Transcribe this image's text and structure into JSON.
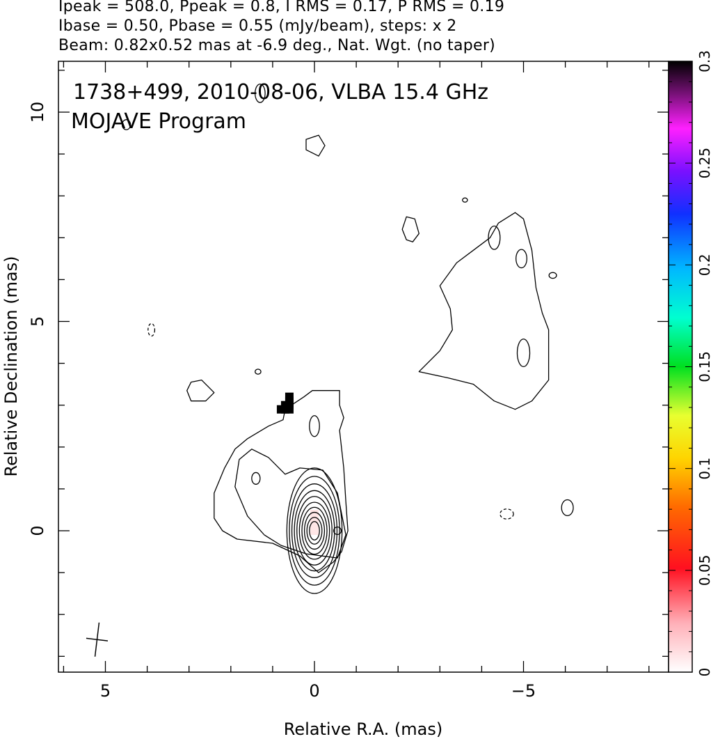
{
  "header": {
    "line1": "Ipeak = 508.0, Ppeak = 0.8, I RMS = 0.17, P RMS = 0.19",
    "line2": "Ibase = 0.50, Pbase = 0.55 (mJy/beam), steps: x 2",
    "line3": "Beam: 0.82x0.52 mas at -6.9 deg., Nat. Wgt. (no taper)"
  },
  "annotations": {
    "source": "1738+499, 2010-08-06, VLBA 15.4 GHz",
    "program": "MOJAVE Program"
  },
  "chart_data": {
    "type": "contour",
    "xlabel": "Relative R.A. (mas)",
    "ylabel": "Relative Declination (mas)",
    "xlim": [
      6.1,
      -8.5
    ],
    "ylim": [
      -3.4,
      11.3
    ],
    "x_ticks": [
      5,
      0,
      -5
    ],
    "y_ticks": [
      0,
      5,
      10
    ],
    "colorbar": {
      "range": [
        0,
        0.3
      ],
      "ticks": [
        "0",
        "0.05",
        "0.1",
        "0.15",
        "0.2",
        "0.25",
        "0.3"
      ]
    },
    "beam": {
      "major_mas": 0.82,
      "minor_mas": 0.52,
      "pa_deg": -6.9,
      "center": [
        5.2,
        -2.6
      ]
    },
    "core_contours": [
      {
        "rx": 0.12,
        "ry": 0.22
      },
      {
        "rx": 0.18,
        "ry": 0.32
      },
      {
        "rx": 0.24,
        "ry": 0.44
      },
      {
        "rx": 0.3,
        "ry": 0.56
      },
      {
        "rx": 0.36,
        "ry": 0.68
      },
      {
        "rx": 0.42,
        "ry": 0.82
      },
      {
        "rx": 0.48,
        "ry": 0.96
      },
      {
        "rx": 0.54,
        "ry": 1.12
      },
      {
        "rx": 0.6,
        "ry": 1.3
      },
      {
        "rx": 0.66,
        "ry": 1.5
      }
    ],
    "outer_contours": [
      {
        "name": "inner-jet-envelope",
        "points": [
          [
            0.7,
            1.35
          ],
          [
            1.1,
            1.75
          ],
          [
            1.5,
            1.95
          ],
          [
            1.8,
            1.7
          ],
          [
            1.9,
            1.05
          ],
          [
            1.6,
            0.35
          ],
          [
            1.2,
            -0.1
          ],
          [
            0.8,
            -0.35
          ],
          [
            0.2,
            -0.55
          ],
          [
            -0.55,
            -0.65
          ],
          [
            -0.75,
            -0.1
          ],
          [
            -0.55,
            0.9
          ],
          [
            -0.2,
            1.45
          ],
          [
            0.35,
            1.5
          ]
        ]
      },
      {
        "name": "outer-jet-envelope",
        "points": [
          [
            -0.6,
            3.35
          ],
          [
            -0.6,
            3.0
          ],
          [
            -0.7,
            2.7
          ],
          [
            -0.6,
            2.4
          ],
          [
            -0.7,
            1.5
          ],
          [
            -0.75,
            0.7
          ],
          [
            -0.8,
            0.0
          ],
          [
            -0.65,
            -0.5
          ],
          [
            -0.45,
            -0.75
          ],
          [
            -0.1,
            -1.0
          ],
          [
            0.35,
            -0.6
          ],
          [
            1.0,
            -0.3
          ],
          [
            1.85,
            -0.2
          ],
          [
            2.2,
            0.0
          ],
          [
            2.4,
            0.3
          ],
          [
            2.4,
            0.9
          ],
          [
            2.15,
            1.5
          ],
          [
            1.9,
            1.95
          ],
          [
            1.6,
            2.2
          ],
          [
            1.1,
            2.5
          ],
          [
            0.75,
            2.65
          ],
          [
            0.7,
            2.9
          ],
          [
            0.25,
            3.2
          ],
          [
            0.05,
            3.35
          ]
        ]
      },
      {
        "name": "halo-west",
        "points": [
          [
            -2.5,
            3.8
          ],
          [
            -3.0,
            4.3
          ],
          [
            -3.3,
            4.8
          ],
          [
            -3.25,
            5.3
          ],
          [
            -3.0,
            5.85
          ],
          [
            -3.4,
            6.4
          ],
          [
            -3.8,
            6.7
          ],
          [
            -4.2,
            7.0
          ],
          [
            -4.4,
            7.35
          ],
          [
            -4.8,
            7.6
          ],
          [
            -5.0,
            7.45
          ],
          [
            -5.2,
            6.7
          ],
          [
            -5.3,
            5.8
          ],
          [
            -5.45,
            5.2
          ],
          [
            -5.6,
            4.8
          ],
          [
            -5.6,
            3.6
          ],
          [
            -5.2,
            3.1
          ],
          [
            -4.8,
            2.9
          ],
          [
            -4.3,
            3.1
          ],
          [
            -3.8,
            3.5
          ],
          [
            -3.2,
            3.65
          ]
        ]
      },
      {
        "name": "island-a",
        "points": [
          [
            2.7,
            3.6
          ],
          [
            2.4,
            3.3
          ],
          [
            2.6,
            3.1
          ],
          [
            2.95,
            3.1
          ],
          [
            3.05,
            3.35
          ],
          [
            2.95,
            3.55
          ]
        ]
      },
      {
        "name": "island-b",
        "points": [
          [
            -2.1,
            7.2
          ],
          [
            -2.2,
            6.95
          ],
          [
            -2.35,
            6.9
          ],
          [
            -2.5,
            7.1
          ],
          [
            -2.4,
            7.45
          ],
          [
            -2.2,
            7.5
          ]
        ]
      },
      {
        "name": "island-c",
        "points": [
          [
            0.2,
            9.1
          ],
          [
            0.2,
            9.35
          ],
          [
            -0.1,
            9.45
          ],
          [
            -0.25,
            9.2
          ],
          [
            -0.1,
            8.95
          ]
        ]
      }
    ],
    "small_islands": [
      {
        "x": 1.4,
        "y": 1.25,
        "rx": 0.1,
        "ry": 0.14
      },
      {
        "x": 0.0,
        "y": 2.5,
        "rx": 0.12,
        "ry": 0.25
      },
      {
        "x": 1.35,
        "y": 3.8,
        "rx": 0.07,
        "ry": 0.06
      },
      {
        "x": -0.55,
        "y": 0.0,
        "rx": 0.09,
        "ry": 0.09
      },
      {
        "x": -4.3,
        "y": 7.0,
        "rx": 0.14,
        "ry": 0.28
      },
      {
        "x": -4.95,
        "y": 6.5,
        "rx": 0.13,
        "ry": 0.22
      },
      {
        "x": -5.7,
        "y": 6.1,
        "rx": 0.09,
        "ry": 0.07
      },
      {
        "x": -5.0,
        "y": 4.25,
        "rx": 0.15,
        "ry": 0.33
      },
      {
        "x": -3.6,
        "y": 7.9,
        "rx": 0.06,
        "ry": 0.05
      },
      {
        "x": -6.05,
        "y": 0.55,
        "rx": 0.14,
        "ry": 0.19
      },
      {
        "x": 4.5,
        "y": 9.7,
        "rx": 0.1,
        "ry": 0.12
      },
      {
        "x": 1.3,
        "y": 10.45,
        "rx": 0.12,
        "ry": 0.22
      }
    ],
    "negative_contours": [
      {
        "x": -4.6,
        "y": 0.4,
        "rx": 0.16,
        "ry": 0.12
      },
      {
        "x": 3.9,
        "y": 4.8,
        "rx": 0.08,
        "ry": 0.15
      }
    ],
    "polarization_pixels": [
      {
        "x": 0.7,
        "y": 2.9,
        "value": 0.3
      },
      {
        "x": 0.7,
        "y": 3.0,
        "value": 0.3
      },
      {
        "x": 0.6,
        "y": 2.9,
        "value": 0.3
      },
      {
        "x": 0.6,
        "y": 3.0,
        "value": 0.3
      },
      {
        "x": 0.6,
        "y": 3.1,
        "value": 0.3
      },
      {
        "x": 0.6,
        "y": 3.2,
        "value": 0.3
      },
      {
        "x": 0.8,
        "y": 2.9,
        "value": 0.3
      },
      {
        "x": 0.0,
        "y": 0.0,
        "value": 0.01
      },
      {
        "x": 0.0,
        "y": 0.2,
        "value": 0.01
      },
      {
        "x": 0.0,
        "y": 0.4,
        "value": 0.01
      }
    ]
  }
}
